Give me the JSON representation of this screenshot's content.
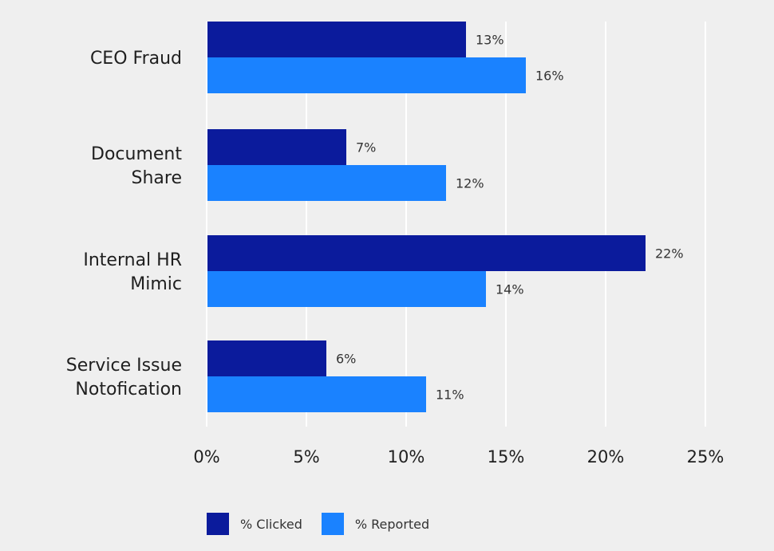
{
  "chart_data": {
    "type": "bar",
    "orientation": "horizontal",
    "categories": [
      [
        "CEO Fraud"
      ],
      [
        "Document",
        "Share"
      ],
      [
        "Internal HR",
        "Mimic"
      ],
      [
        "Service Issue",
        "Notofication"
      ]
    ],
    "series": [
      {
        "name": "% Clicked",
        "values": [
          13,
          7,
          22,
          6
        ],
        "labels": [
          "13%",
          "7%",
          "22%",
          "6%"
        ],
        "color": "#0b1b9c"
      },
      {
        "name": "% Reported",
        "values": [
          16,
          12,
          14,
          11
        ],
        "labels": [
          "16%",
          "12%",
          "14%",
          "11%"
        ],
        "color": "#1a82ff"
      }
    ],
    "xlim": [
      0,
      25
    ],
    "xticks": [
      0,
      5,
      10,
      15,
      20,
      25
    ],
    "xtick_labels": [
      "0%",
      "5%",
      "10%",
      "15%",
      "20%",
      "25%"
    ],
    "grid": "vertical",
    "legend_position": "bottom-left",
    "title": "",
    "xlabel": "",
    "ylabel": ""
  },
  "colors": {
    "background": "#efefef",
    "gridline": "#ffffff"
  }
}
